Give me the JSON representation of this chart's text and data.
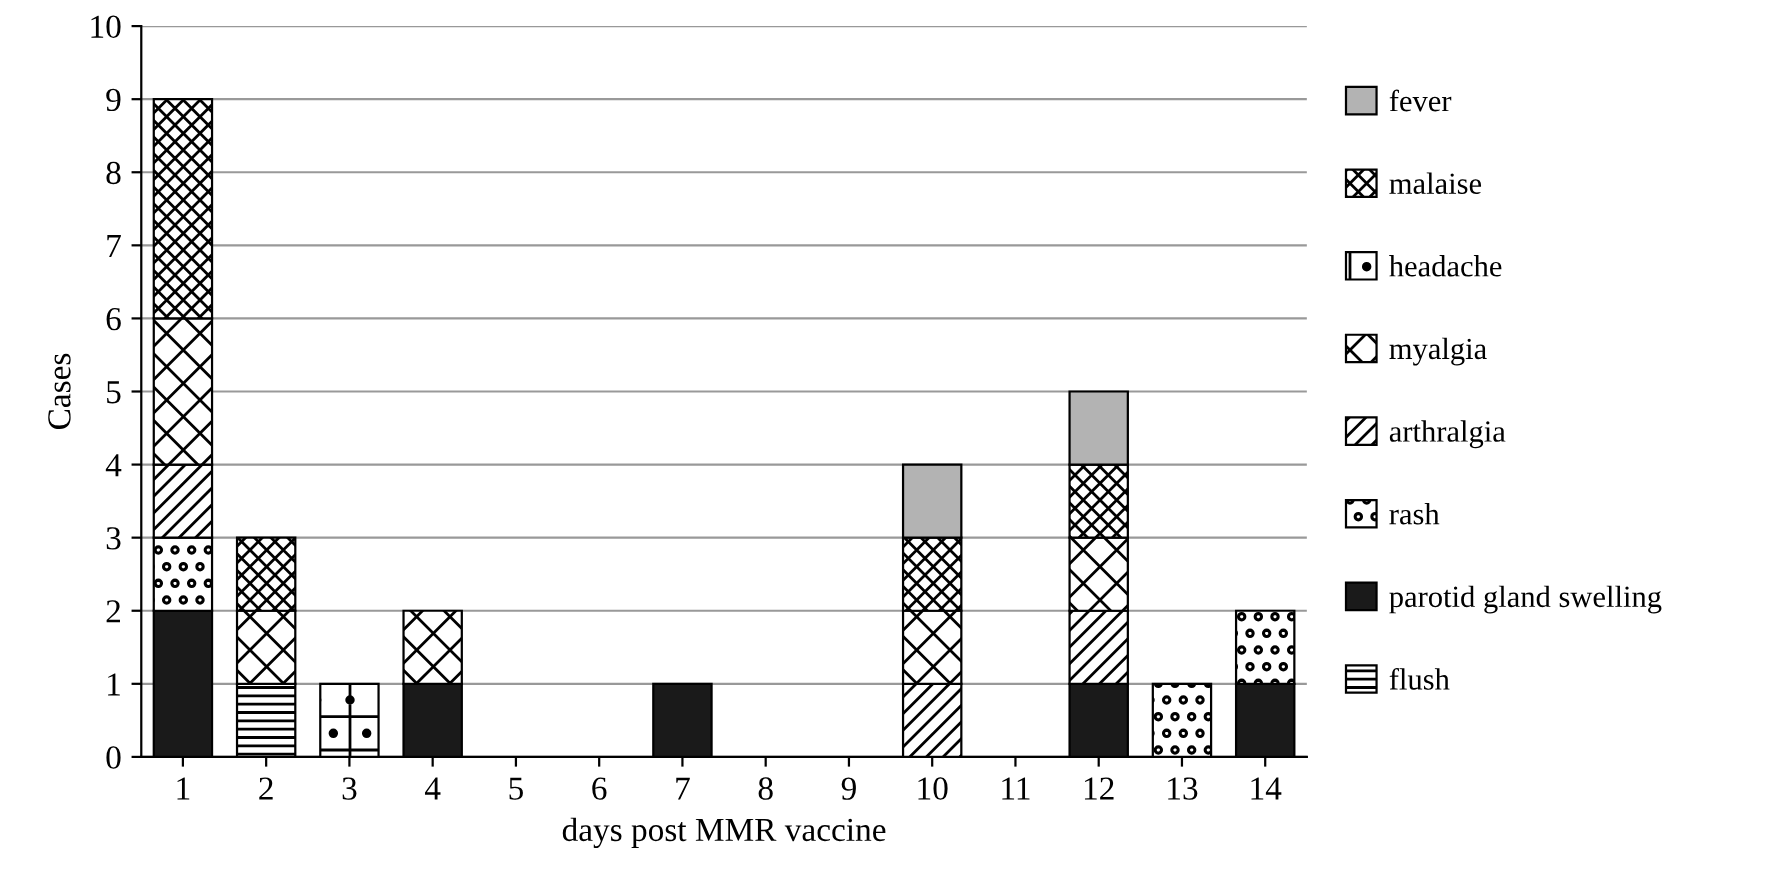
{
  "chart_data": {
    "type": "bar",
    "stacked": true,
    "xlabel": "days post MMR vaccine",
    "ylabel": "Cases",
    "categories": [
      "1",
      "2",
      "3",
      "4",
      "5",
      "6",
      "7",
      "8",
      "9",
      "10",
      "11",
      "12",
      "13",
      "14"
    ],
    "ylim": [
      0,
      10
    ],
    "yticks": [
      0,
      1,
      2,
      3,
      4,
      5,
      6,
      7,
      8,
      9,
      10
    ],
    "grid": "y",
    "legend": "right",
    "series": [
      {
        "name": "flush",
        "color": "#000000",
        "values": [
          0,
          1,
          0,
          0,
          0,
          0,
          0,
          0,
          0,
          0,
          0,
          0,
          0,
          0
        ]
      },
      {
        "name": "parotid gland swelling",
        "color": "#1a1a1a",
        "values": [
          2,
          0,
          0,
          1,
          0,
          0,
          1,
          0,
          0,
          0,
          0,
          1,
          0,
          1
        ]
      },
      {
        "name": "rash",
        "color": "#000000",
        "values": [
          1,
          0,
          0,
          0,
          0,
          0,
          0,
          0,
          0,
          0,
          0,
          0,
          1,
          1
        ]
      },
      {
        "name": "arthralgia",
        "color": "#000000",
        "values": [
          1,
          0,
          0,
          0,
          0,
          0,
          0,
          0,
          0,
          1,
          0,
          1,
          0,
          0
        ]
      },
      {
        "name": "myalgia",
        "color": "#000000",
        "values": [
          2,
          1,
          0,
          1,
          0,
          0,
          0,
          0,
          0,
          1,
          0,
          1,
          0,
          0
        ]
      },
      {
        "name": "headache",
        "color": "#000000",
        "values": [
          0,
          0,
          1,
          0,
          0,
          0,
          0,
          0,
          0,
          0,
          0,
          0,
          0,
          0
        ]
      },
      {
        "name": "malaise",
        "color": "#000000",
        "values": [
          3,
          1,
          0,
          0,
          0,
          0,
          0,
          0,
          0,
          1,
          0,
          1,
          0,
          0
        ]
      },
      {
        "name": "fever",
        "color": "#b3b3b3",
        "values": [
          0,
          0,
          0,
          0,
          0,
          0,
          0,
          0,
          0,
          1,
          0,
          1,
          0,
          0
        ]
      }
    ]
  }
}
